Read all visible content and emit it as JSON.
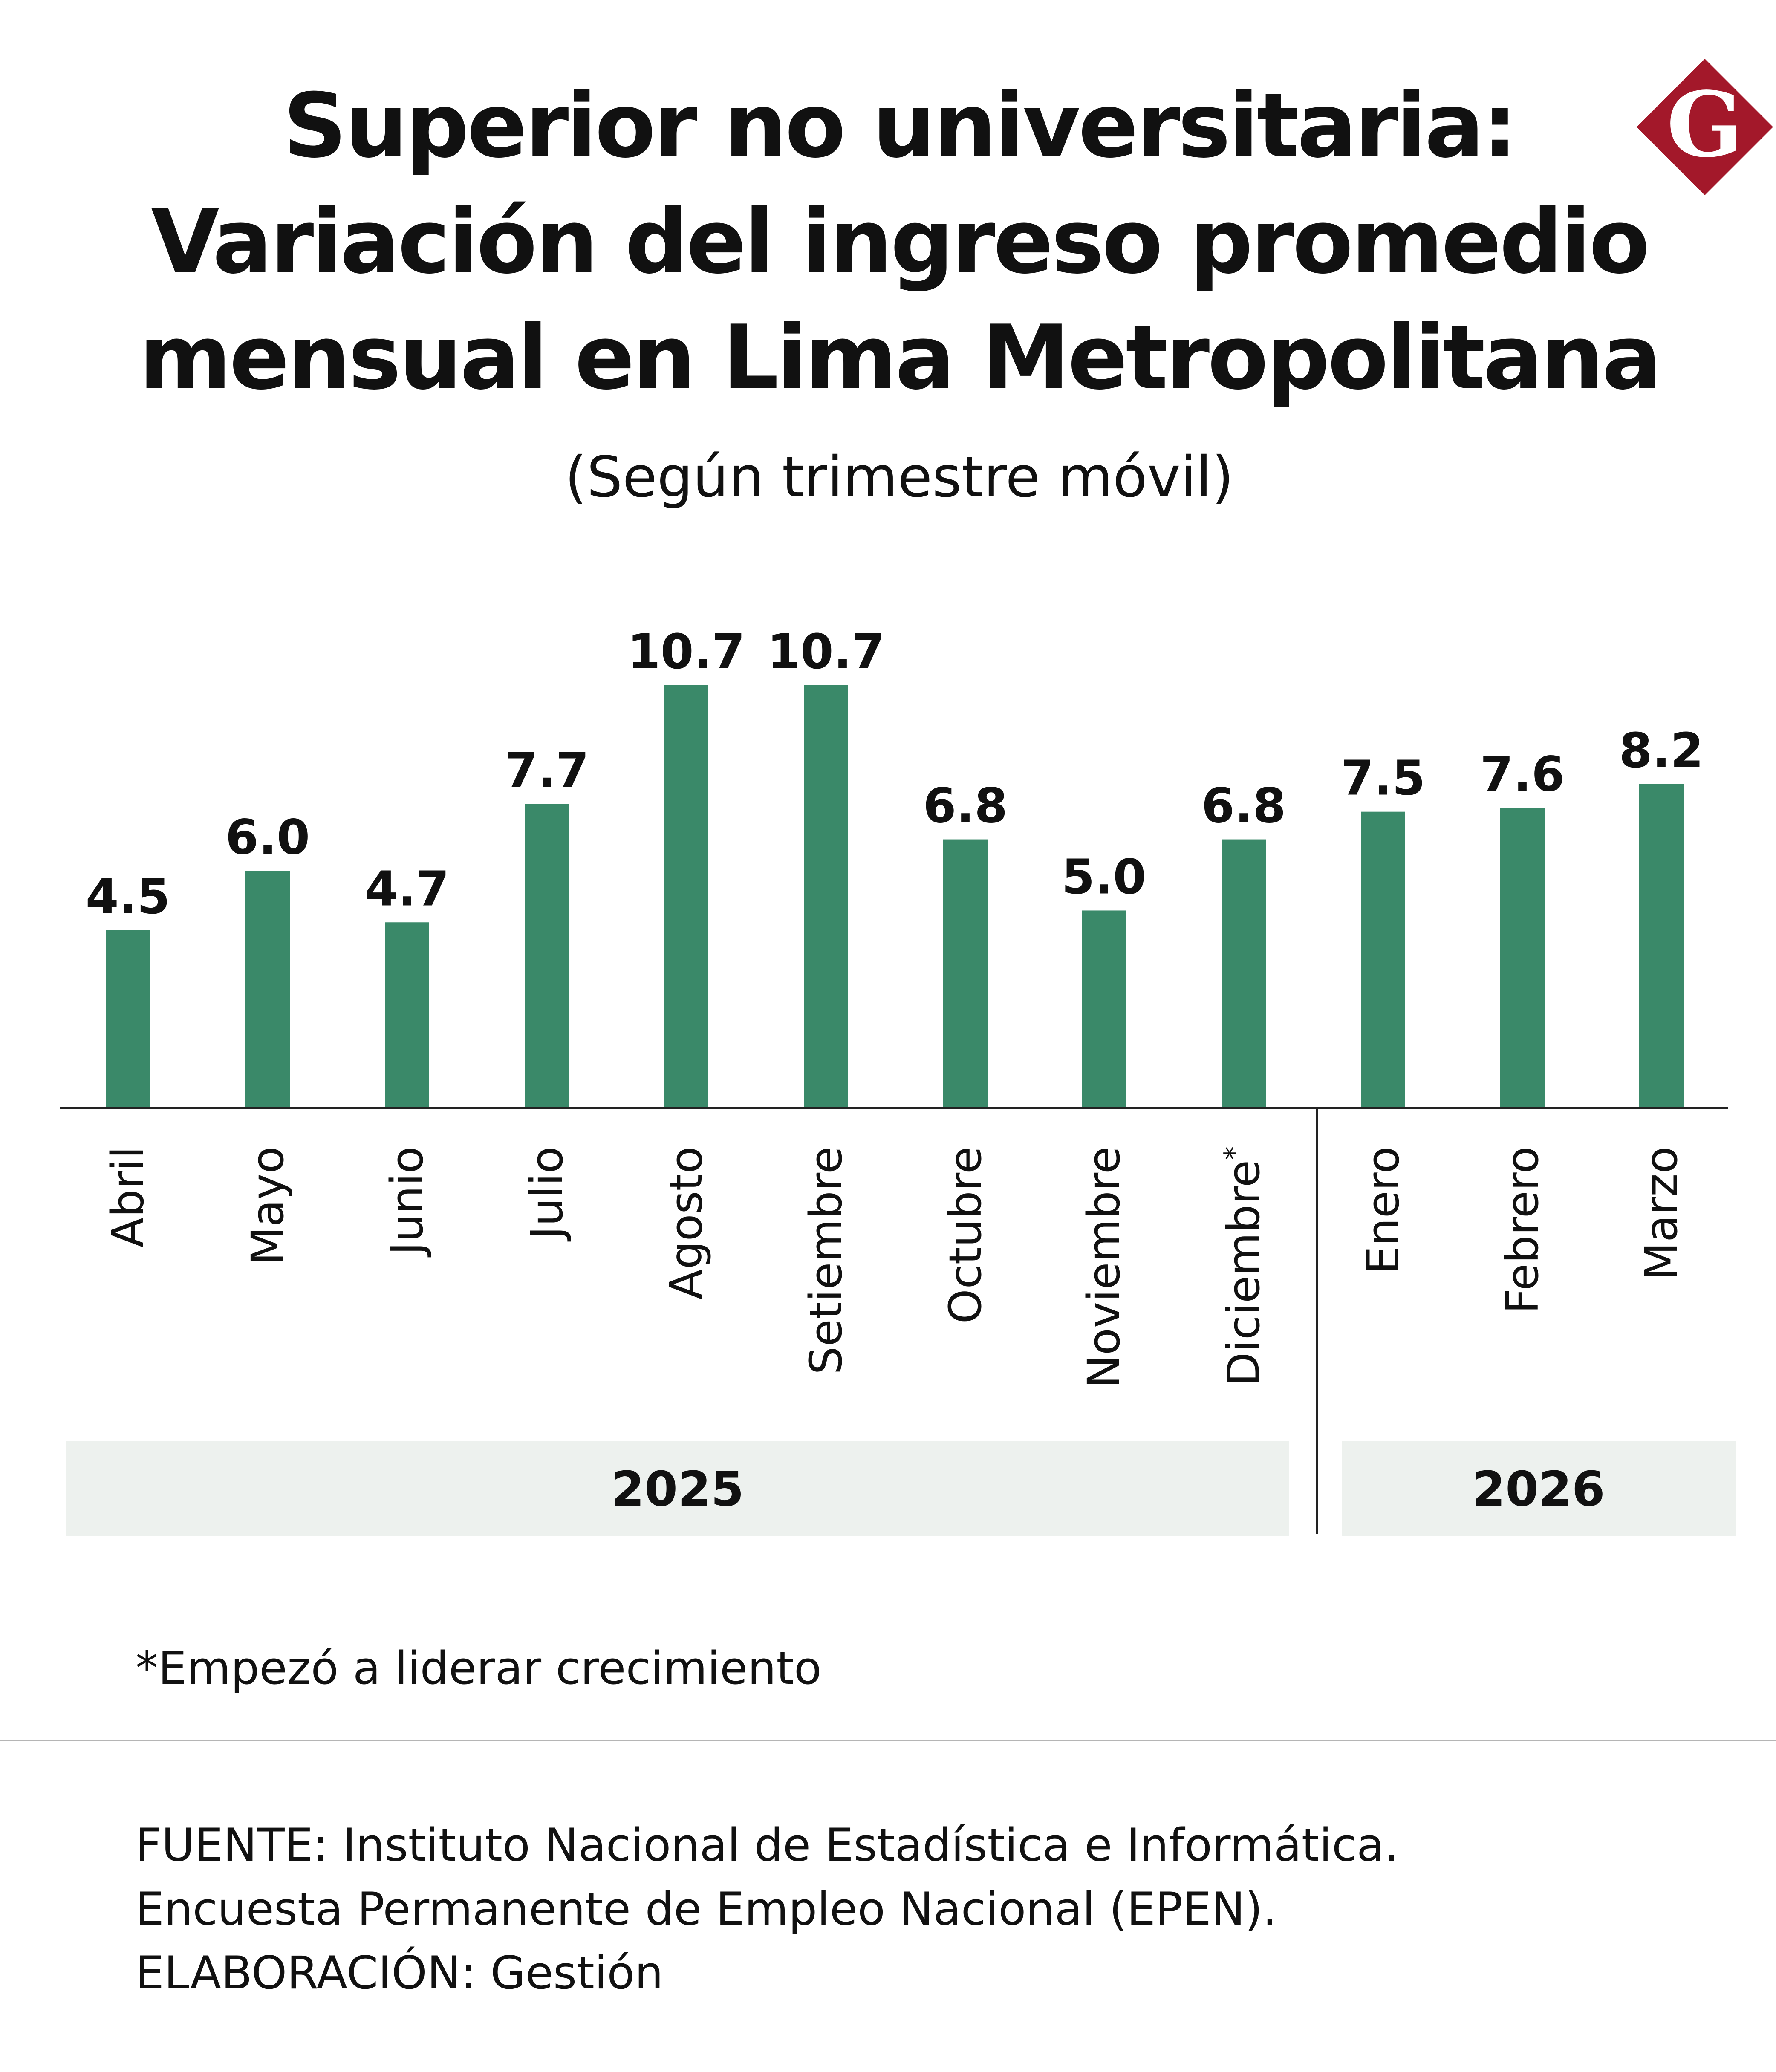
{
  "title_lines": [
    "Superior no universitaria:",
    "Variación del ingreso promedio",
    "mensual en Lima Metropolitana"
  ],
  "subtitle": "(Según trimestre móvil)",
  "logo": {
    "letter": "G",
    "color": "#a3182a"
  },
  "colors": {
    "bar": "#3a8969",
    "year_band": "#edf1ee",
    "axis": "#222222"
  },
  "chart_data": {
    "type": "bar",
    "title": "Superior no universitaria: Variación del ingreso promedio mensual en Lima Metropolitana",
    "subtitle": "(Según trimestre móvil)",
    "categories": [
      "Abril",
      "Mayo",
      "Junio",
      "Julio",
      "Agosto",
      "Setiembre",
      "Octubre",
      "Noviembre",
      "Diciembre",
      "Enero",
      "Febrero",
      "Marzo"
    ],
    "category_marks": [
      "",
      "",
      "",
      "",
      "",
      "",
      "",
      "",
      "*",
      "",
      "",
      ""
    ],
    "values": [
      4.5,
      6.0,
      4.7,
      7.7,
      10.7,
      10.7,
      6.8,
      5.0,
      6.8,
      7.5,
      7.6,
      8.2
    ],
    "value_labels": [
      "4.5",
      "6.0",
      "4.7",
      "7.7",
      "10.7",
      "10.7",
      "6.8",
      "5.0",
      "6.8",
      "7.5",
      "7.6",
      "8.2"
    ],
    "groups": [
      {
        "label": "2025",
        "count": 9
      },
      {
        "label": "2026",
        "count": 3
      }
    ],
    "ylim": [
      0,
      10.7
    ],
    "xlabel": "",
    "ylabel": "",
    "grid": false,
    "legend": "none"
  },
  "footnote": "*Empezó a liderar crecimiento",
  "source_lines": [
    "FUENTE: Instituto Nacional de Estadística e Informática.",
    "Encuesta Permanente de Empleo Nacional (EPEN).",
    "ELABORACIÓN: Gestión"
  ]
}
